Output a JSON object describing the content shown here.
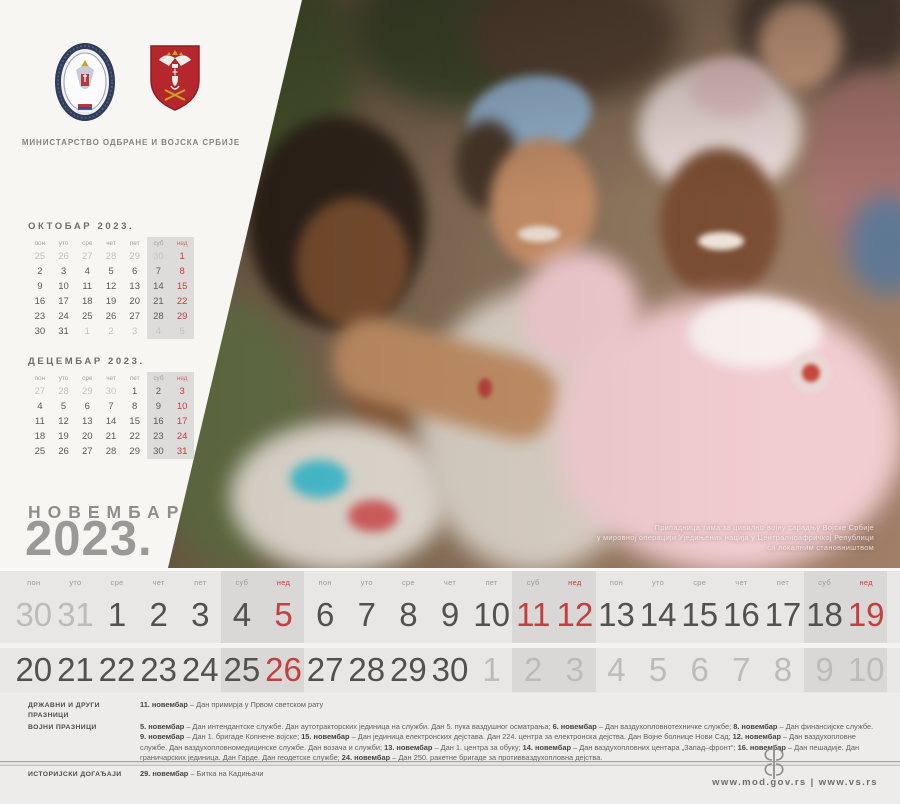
{
  "header": {
    "ministry_title": "МИНИСТАРСТВО ОДБРАНЕ И ВОЈСКА СРБИЈЕ"
  },
  "month_title": {
    "name": "НОВЕМБАР",
    "year": "2023."
  },
  "day_headers": [
    "пон",
    "уто",
    "сре",
    "чет",
    "пет",
    "суб",
    "нед"
  ],
  "mini_calendars": [
    {
      "title": "ОКТОБАР 2023.",
      "weeks": [
        [
          {
            "d": "25",
            "dim": true
          },
          {
            "d": "26",
            "dim": true
          },
          {
            "d": "27",
            "dim": true
          },
          {
            "d": "28",
            "dim": true
          },
          {
            "d": "29",
            "dim": true
          },
          {
            "d": "30",
            "dim": true
          },
          {
            "d": "1",
            "red": true
          }
        ],
        [
          {
            "d": "2"
          },
          {
            "d": "3"
          },
          {
            "d": "4"
          },
          {
            "d": "5"
          },
          {
            "d": "6"
          },
          {
            "d": "7"
          },
          {
            "d": "8",
            "red": true
          }
        ],
        [
          {
            "d": "9"
          },
          {
            "d": "10"
          },
          {
            "d": "11"
          },
          {
            "d": "12"
          },
          {
            "d": "13"
          },
          {
            "d": "14"
          },
          {
            "d": "15",
            "red": true
          }
        ],
        [
          {
            "d": "16"
          },
          {
            "d": "17"
          },
          {
            "d": "18"
          },
          {
            "d": "19"
          },
          {
            "d": "20"
          },
          {
            "d": "21"
          },
          {
            "d": "22",
            "red": true
          }
        ],
        [
          {
            "d": "23"
          },
          {
            "d": "24"
          },
          {
            "d": "25"
          },
          {
            "d": "26"
          },
          {
            "d": "27"
          },
          {
            "d": "28"
          },
          {
            "d": "29",
            "red": true
          }
        ],
        [
          {
            "d": "30"
          },
          {
            "d": "31"
          },
          {
            "d": "1",
            "dim": true
          },
          {
            "d": "2",
            "dim": true
          },
          {
            "d": "3",
            "dim": true
          },
          {
            "d": "4",
            "dim": true
          },
          {
            "d": "5",
            "dim": true
          }
        ]
      ]
    },
    {
      "title": "ДЕЦЕМБАР 2023.",
      "weeks": [
        [
          {
            "d": "27",
            "dim": true
          },
          {
            "d": "28",
            "dim": true
          },
          {
            "d": "29",
            "dim": true
          },
          {
            "d": "30",
            "dim": true
          },
          {
            "d": "1"
          },
          {
            "d": "2"
          },
          {
            "d": "3",
            "red": true
          }
        ],
        [
          {
            "d": "4"
          },
          {
            "d": "5"
          },
          {
            "d": "6"
          },
          {
            "d": "7"
          },
          {
            "d": "8"
          },
          {
            "d": "9"
          },
          {
            "d": "10",
            "red": true
          }
        ],
        [
          {
            "d": "11"
          },
          {
            "d": "12"
          },
          {
            "d": "13"
          },
          {
            "d": "14"
          },
          {
            "d": "15"
          },
          {
            "d": "16"
          },
          {
            "d": "17",
            "red": true
          }
        ],
        [
          {
            "d": "18"
          },
          {
            "d": "19"
          },
          {
            "d": "20"
          },
          {
            "d": "21"
          },
          {
            "d": "22"
          },
          {
            "d": "23"
          },
          {
            "d": "24",
            "red": true
          }
        ],
        [
          {
            "d": "25"
          },
          {
            "d": "26"
          },
          {
            "d": "27"
          },
          {
            "d": "28"
          },
          {
            "d": "29"
          },
          {
            "d": "30"
          },
          {
            "d": "31",
            "red": true
          }
        ]
      ]
    }
  ],
  "main_calendar": {
    "rows": [
      [
        {
          "d": "30",
          "dim": true
        },
        {
          "d": "31",
          "dim": true
        },
        {
          "d": "1"
        },
        {
          "d": "2"
        },
        {
          "d": "3"
        },
        {
          "d": "4"
        },
        {
          "d": "5",
          "red": true
        },
        {
          "d": "6"
        },
        {
          "d": "7"
        },
        {
          "d": "8"
        },
        {
          "d": "9"
        },
        {
          "d": "10"
        },
        {
          "d": "11",
          "red": true
        },
        {
          "d": "12",
          "red": true
        },
        {
          "d": "13"
        },
        {
          "d": "14"
        },
        {
          "d": "15"
        },
        {
          "d": "16"
        },
        {
          "d": "17"
        },
        {
          "d": "18"
        },
        {
          "d": "19",
          "red": true
        }
      ],
      [
        {
          "d": "20"
        },
        {
          "d": "21"
        },
        {
          "d": "22"
        },
        {
          "d": "23"
        },
        {
          "d": "24"
        },
        {
          "d": "25"
        },
        {
          "d": "26",
          "red": true
        },
        {
          "d": "27"
        },
        {
          "d": "28"
        },
        {
          "d": "29"
        },
        {
          "d": "30"
        },
        {
          "d": "1",
          "dim": true
        },
        {
          "d": "2",
          "dim": true
        },
        {
          "d": "3",
          "dim": true
        },
        {
          "d": "4",
          "dim": true
        },
        {
          "d": "5",
          "dim": true
        },
        {
          "d": "6",
          "dim": true
        },
        {
          "d": "7",
          "dim": true
        },
        {
          "d": "8",
          "dim": true
        },
        {
          "d": "9",
          "dim": true
        },
        {
          "d": "10",
          "dim": true
        }
      ]
    ]
  },
  "photo": {
    "caption_lines": [
      "Припадница тима за цивилно-војну сарадњу Војске Србије",
      "у мировној операцији Уједињених нација у Централноафричкој Републици",
      "са локалним становништвом"
    ]
  },
  "holidays": {
    "sections": [
      {
        "label": "ДРЖАВНИ И ДРУГИ ПРАЗНИЦИ",
        "lines": [
          [
            {
              "b": "11. новембар",
              "t": " – Дан примирја у Првом светском рату"
            }
          ]
        ]
      },
      {
        "label": "ВОЈНИ ПРАЗНИЦИ",
        "lines": [
          [
            {
              "b": "5. новембар",
              "t": " – Дан интендантске службе. Дан аутотракторских јединица на служби. Дан 5. пука ваздушног осматрања; "
            },
            {
              "b": "6. новембар",
              "t": " – Дан ваздухопловнотехничке службе; "
            },
            {
              "b": "8. новембар",
              "t": " – Дан финансијске службе."
            }
          ],
          [
            {
              "b": "9. новембар",
              "t": " – Дан 1. бригаде Копнене војске; "
            },
            {
              "b": "15. новембар",
              "t": " – Дан јединица електронских дејстава. Дан 224. центра за електронска дејства. Дан Војне болнице Нови Сад; "
            },
            {
              "b": "12. новембар",
              "t": " – Дан ваздухопловне"
            }
          ],
          [
            {
              "t": "службе. Дан ваздухопловномедицинске службе. Дан возача и служби; "
            },
            {
              "b": "13. новембар",
              "t": " – Дан 1. центра за обуку; "
            },
            {
              "b": "14. новембар",
              "t": " – Дан ваздухопловних центара „Запад–фронт“; "
            },
            {
              "b": "16. новембар",
              "t": " – Дан пешадије. Дан"
            }
          ],
          [
            {
              "t": "граничарских јединица. Дан Гарде. Дан геодетске службе; "
            },
            {
              "b": "24. новембар",
              "t": " – Дан 250. ракетне бригаде за противваздухопловна дејства."
            }
          ]
        ]
      },
      {
        "label": "ИСТОРИЈСКИ ДОГАЂАЈИ",
        "lines": [
          [
            {
              "b": "29. новембар",
              "t": " – Битка на Кадињачи"
            }
          ]
        ]
      }
    ]
  },
  "footer": {
    "links": "www.mod.gov.rs | www.vs.rs"
  },
  "icons": {
    "mod_emblem": "ministry-of-defence-emblem",
    "army_emblem": "serbian-army-coat-of-arms",
    "footer_ornament": "serbian-cross-ornament"
  },
  "colors": {
    "accent_red": "#c2403f",
    "weekend_band": "#dad8d6",
    "panel": "#f7f6f3",
    "page": "#eae9e7"
  }
}
